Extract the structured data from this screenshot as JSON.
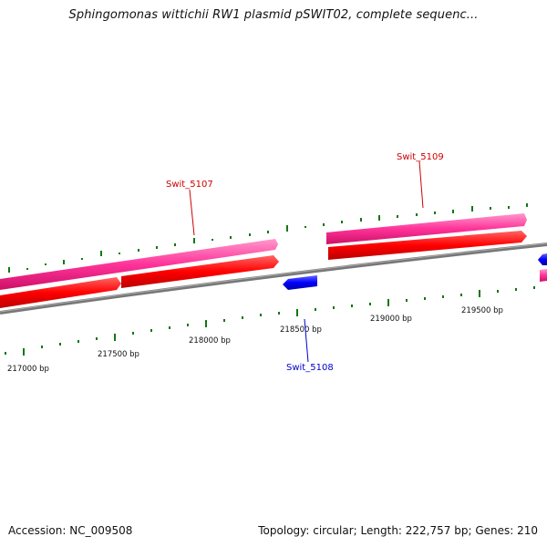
{
  "title": "Sphingomonas wittichii RW1 plasmid pSWIT02, complete sequenc...",
  "colors": {
    "forward_gene": "#ff0000",
    "forward_cds": "#ff3399",
    "reverse_gene": "#0000ff",
    "backbone": "#888888",
    "gc_ticks": "#117711",
    "forward_label": "#cc0000",
    "reverse_label": "#0000cc"
  },
  "scale": {
    "ticks": [
      "217000 bp",
      "217500 bp",
      "218000 bp",
      "218500 bp",
      "219000 bp",
      "219500 bp"
    ]
  },
  "genes": [
    {
      "label": "Swit_5107",
      "strand": "forward"
    },
    {
      "label": "Swit_5108",
      "strand": "reverse"
    },
    {
      "label": "Swit_5109",
      "strand": "forward"
    }
  ],
  "footer": {
    "accession": "Accession: NC_009508",
    "topology": "Topology: circular",
    "length": "Length: 222,757 bp",
    "genes": "Genes: 210"
  }
}
